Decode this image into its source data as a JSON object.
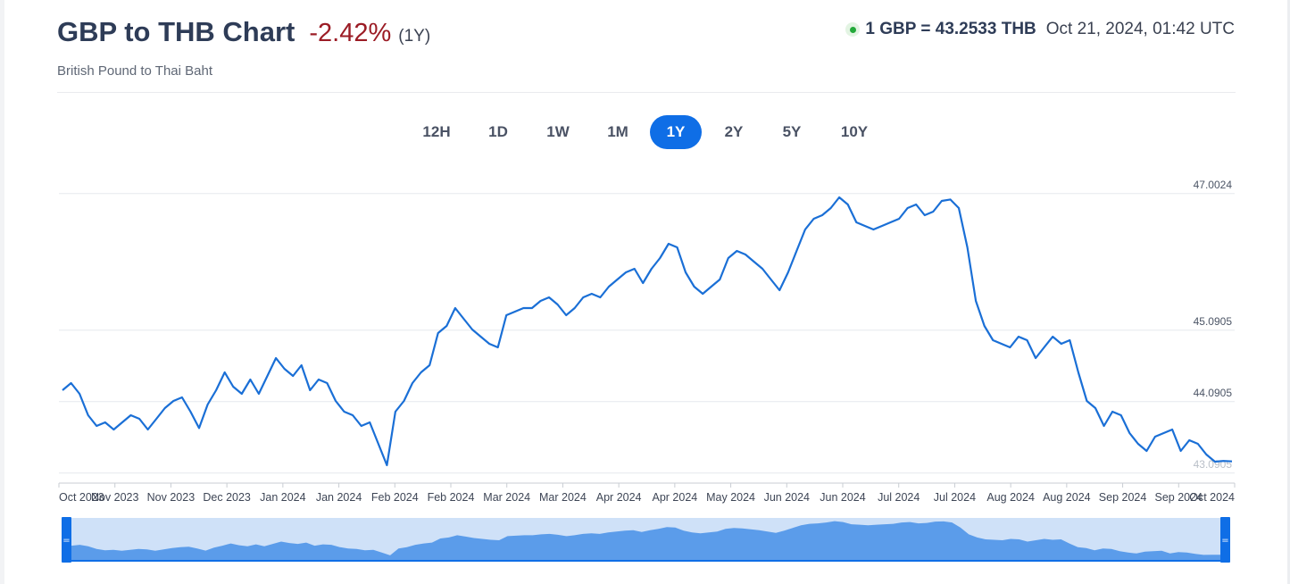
{
  "header": {
    "title": "GBP to THB Chart",
    "change": "-2.42%",
    "period": "(1Y)",
    "subtitle": "British Pound to Thai Baht",
    "rate": "1 GBP = 43.2533 THB",
    "timestamp": "Oct 21, 2024, 01:42 UTC"
  },
  "tabs": [
    {
      "label": "12H",
      "active": false
    },
    {
      "label": "1D",
      "active": false
    },
    {
      "label": "1W",
      "active": false
    },
    {
      "label": "1M",
      "active": false
    },
    {
      "label": "1Y",
      "active": true
    },
    {
      "label": "2Y",
      "active": false
    },
    {
      "label": "5Y",
      "active": false
    },
    {
      "label": "10Y",
      "active": false
    }
  ],
  "colors": {
    "line": "#1a6fd6",
    "navigator_fill": "#5b9cea",
    "navigator_bg": "#cfe1f8",
    "navigator_handle": "#0f6ee6",
    "negative": "#9b1c25",
    "live": "#23a93a"
  },
  "chart_data": {
    "type": "line",
    "title": "GBP to THB Chart",
    "ylim": [
      42.95,
      47.15
    ],
    "y_ticks": [
      {
        "value": 47.0024,
        "label": "47.0024"
      },
      {
        "value": 45.0905,
        "label": "45.0905"
      },
      {
        "value": 44.0905,
        "label": "44.0905"
      },
      {
        "value": 43.0905,
        "label": "43.0905"
      }
    ],
    "x_tick_labels": [
      "Oct 2023",
      "Nov 2023",
      "Nov 2023",
      "Dec 2023",
      "Jan 2024",
      "Jan 2024",
      "Feb 2024",
      "Feb 2024",
      "Mar 2024",
      "Mar 2024",
      "Apr 2024",
      "Apr 2024",
      "May 2024",
      "Jun 2024",
      "Jun 2024",
      "Jul 2024",
      "Jul 2024",
      "Aug 2024",
      "Aug 2024",
      "Sep 2024",
      "Sep 2024",
      "Oct 2024"
    ],
    "series": [
      {
        "values": [
          44.25,
          44.35,
          44.2,
          43.9,
          43.75,
          43.8,
          43.7,
          43.8,
          43.9,
          43.85,
          43.7,
          43.85,
          44.0,
          44.1,
          44.15,
          43.95,
          43.72,
          44.05,
          44.25,
          44.5,
          44.3,
          44.2,
          44.4,
          44.2,
          44.45,
          44.7,
          44.55,
          44.45,
          44.6,
          44.25,
          44.4,
          44.35,
          44.1,
          43.95,
          43.9,
          43.75,
          43.8,
          43.5,
          43.2,
          43.95,
          44.1,
          44.35,
          44.5,
          44.6,
          45.05,
          45.15,
          45.4,
          45.25,
          45.1,
          45.0,
          44.9,
          44.85,
          45.3,
          45.35,
          45.4,
          45.4,
          45.5,
          45.55,
          45.45,
          45.3,
          45.4,
          45.55,
          45.6,
          45.55,
          45.7,
          45.8,
          45.9,
          45.95,
          45.75,
          45.95,
          46.1,
          46.3,
          46.25,
          45.9,
          45.7,
          45.6,
          45.7,
          45.8,
          46.1,
          46.2,
          46.15,
          46.05,
          45.95,
          45.8,
          45.65,
          45.9,
          46.2,
          46.5,
          46.65,
          46.7,
          46.8,
          46.95,
          46.85,
          46.6,
          46.55,
          46.5,
          46.55,
          46.6,
          46.65,
          46.8,
          46.85,
          46.7,
          46.75,
          46.9,
          46.92,
          46.8,
          46.25,
          45.5,
          45.15,
          44.95,
          44.9,
          44.85,
          45.0,
          44.95,
          44.7,
          44.85,
          45.0,
          44.9,
          44.95,
          44.5,
          44.1,
          44.0,
          43.75,
          43.95,
          43.9,
          43.65,
          43.5,
          43.4,
          43.6,
          43.65,
          43.7,
          43.4,
          43.55,
          43.5,
          43.35,
          43.25,
          43.26,
          43.2533
        ]
      }
    ]
  }
}
